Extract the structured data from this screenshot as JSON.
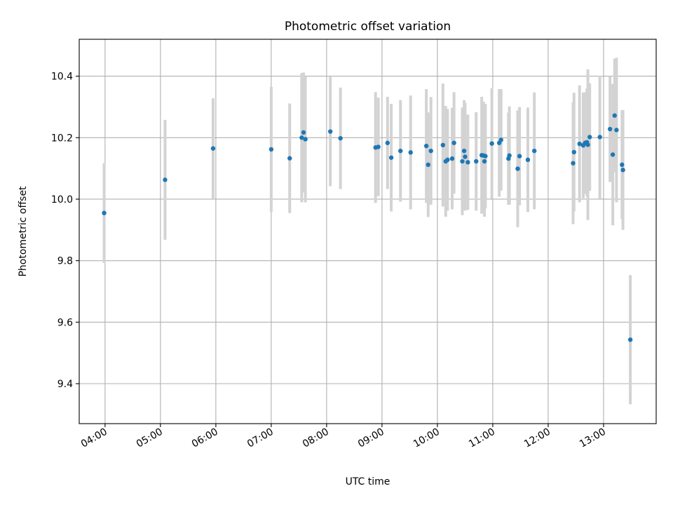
{
  "chart_data": {
    "type": "scatter",
    "title": "Photometric offset variation",
    "xlabel": "UTC time",
    "ylabel": "Photometric offset",
    "x_axis": "time",
    "xlim": [
      "03:32",
      "13:57"
    ],
    "ylim": [
      9.27,
      10.52
    ],
    "xticks": [
      "04:00",
      "05:00",
      "06:00",
      "07:00",
      "08:00",
      "09:00",
      "10:00",
      "11:00",
      "12:00",
      "13:00"
    ],
    "yticks": [
      9.4,
      9.6,
      9.8,
      10.0,
      10.2,
      10.4
    ],
    "grid": true,
    "point_color": "#1f77b4",
    "errorbar_color": "#d3d3d3",
    "series": [
      {
        "x": [
          "03:59",
          "05:05",
          "05:57",
          "07:00",
          "07:20",
          "07:33",
          "07:35",
          "07:37",
          "08:04",
          "08:15",
          "08:53",
          "08:56",
          "09:06",
          "09:10",
          "09:20",
          "09:31",
          "09:48",
          "09:50",
          "09:53",
          "10:06",
          "10:09",
          "10:11",
          "10:16",
          "10:18",
          "10:27",
          "10:29",
          "10:30",
          "10:33",
          "10:42",
          "10:48",
          "10:50",
          "10:51",
          "10:52",
          "10:59",
          "11:07",
          "11:09",
          "11:17",
          "11:18",
          "11:27",
          "11:29",
          "11:38",
          "11:45",
          "12:27",
          "12:28",
          "12:34",
          "12:38",
          "12:40",
          "12:42",
          "12:43",
          "12:45",
          "12:56",
          "13:07",
          "13:10",
          "13:12",
          "13:14",
          "13:20",
          "13:21",
          "13:29"
        ],
        "y": [
          9.955,
          10.063,
          10.165,
          10.162,
          10.133,
          10.2,
          10.217,
          10.195,
          10.22,
          10.198,
          10.168,
          10.17,
          10.183,
          10.135,
          10.157,
          10.152,
          10.173,
          10.112,
          10.157,
          10.176,
          10.123,
          10.128,
          10.132,
          10.183,
          10.123,
          10.157,
          10.138,
          10.12,
          10.123,
          10.143,
          10.142,
          10.123,
          10.14,
          10.181,
          10.183,
          10.193,
          10.132,
          10.142,
          10.099,
          10.14,
          10.128,
          10.157,
          10.117,
          10.153,
          10.18,
          10.175,
          10.183,
          10.185,
          10.177,
          10.202,
          10.202,
          10.228,
          10.145,
          10.272,
          10.225,
          10.112,
          10.095,
          9.543
        ],
        "yerr": [
          0.162,
          0.195,
          0.163,
          0.203,
          0.178,
          0.21,
          0.195,
          0.205,
          0.178,
          0.165,
          0.18,
          0.16,
          0.15,
          0.175,
          0.165,
          0.185,
          0.185,
          0.17,
          0.175,
          0.2,
          0.18,
          0.165,
          0.165,
          0.165,
          0.175,
          0.165,
          0.175,
          0.155,
          0.16,
          0.19,
          0.175,
          0.18,
          0.17,
          0.18,
          0.175,
          0.165,
          0.15,
          0.16,
          0.19,
          0.16,
          0.17,
          0.19,
          0.198,
          0.193,
          0.19,
          0.172,
          0.165,
          0.175,
          0.245,
          0.175,
          0.2,
          0.172,
          0.23,
          0.185,
          0.235,
          0.177,
          0.195,
          0.21
        ]
      }
    ]
  }
}
